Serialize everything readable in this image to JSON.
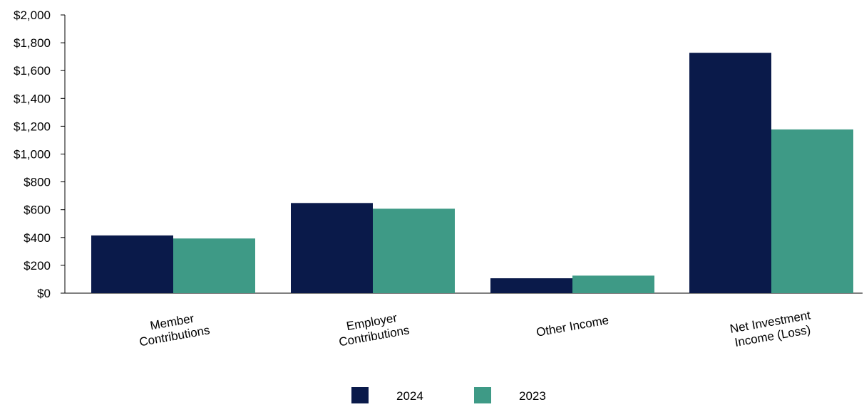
{
  "chart_data": {
    "type": "bar",
    "categories": [
      [
        "Member",
        "Contributions"
      ],
      [
        "Employer",
        "Contributions"
      ],
      [
        "Other Income"
      ],
      [
        "Net Investment",
        "Income (Loss)"
      ]
    ],
    "series": [
      {
        "name": "2024",
        "values": [
          415,
          648,
          107,
          1728
        ],
        "color": "#0a1a4a"
      },
      {
        "name": "2023",
        "values": [
          393,
          607,
          126,
          1177
        ],
        "color": "#3e9a86"
      }
    ],
    "yticks": [
      0,
      200,
      400,
      600,
      800,
      1000,
      1200,
      1400,
      1600,
      1800,
      2000
    ],
    "ytick_labels": [
      "$0",
      "$200",
      "$400",
      "$600",
      "$800",
      "$1,000",
      "$1,200",
      "$1,400",
      "$1,600",
      "$1,800",
      "$2,000"
    ],
    "ylim": [
      0,
      2000
    ],
    "grid": false,
    "legend_position": "bottom-center",
    "title": "",
    "xlabel": "",
    "ylabel": ""
  }
}
